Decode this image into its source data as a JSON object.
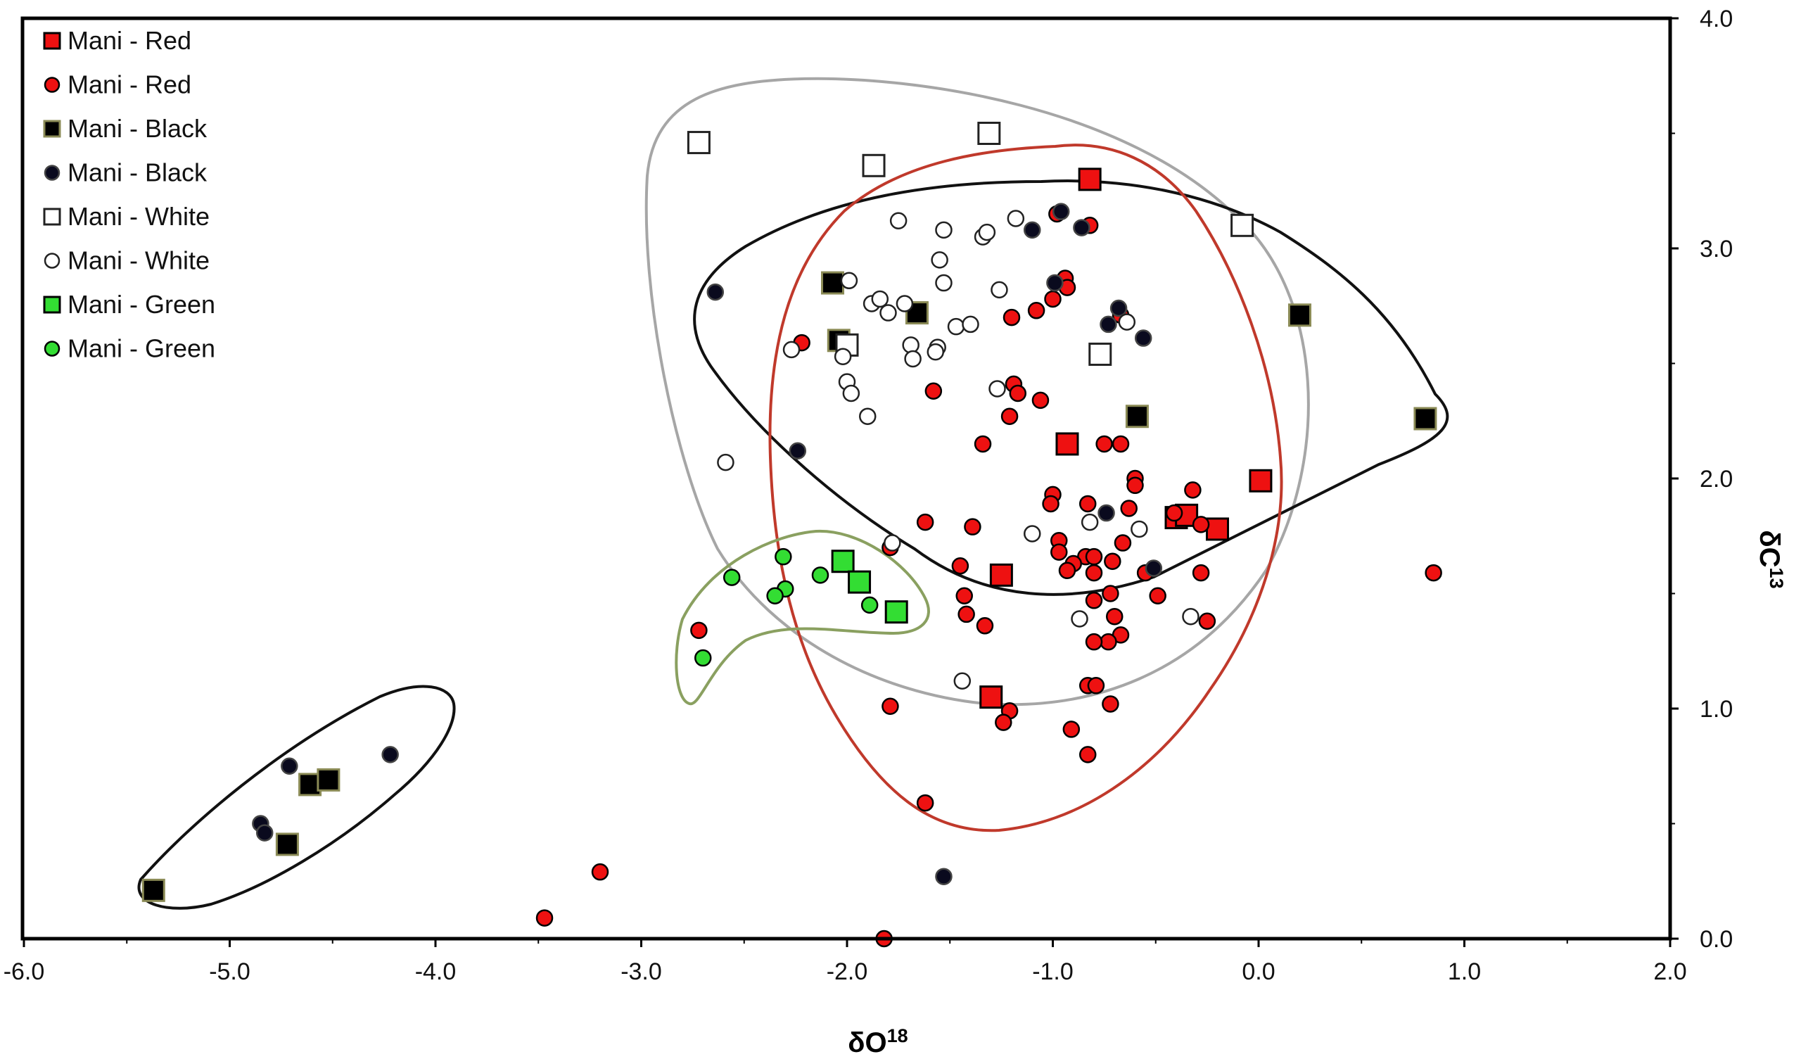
{
  "chart_data": {
    "type": "scatter",
    "title": "",
    "xlabel": "δO",
    "xlabel_sup": "18",
    "ylabel": "δC",
    "ylabel_sup": "13",
    "xlim": [
      -6.0,
      2.0
    ],
    "ylim": [
      0.0,
      4.0
    ],
    "x_ticks": [
      "-6.0",
      "-5.0",
      "-4.0",
      "-3.0",
      "-2.0",
      "-1.0",
      "0.0",
      "1.0",
      "2.0"
    ],
    "y_ticks": [
      "0.0",
      "1.0",
      "2.0",
      "3.0",
      "4.0"
    ],
    "legend_position": "top-left",
    "series": [
      {
        "name": "Mani - Red",
        "marker": "square",
        "fill": "#ee1111",
        "stroke": "#000000",
        "points": [
          [
            -0.82,
            3.3
          ],
          [
            -0.93,
            2.15
          ],
          [
            0.01,
            1.99
          ],
          [
            -0.4,
            1.83
          ],
          [
            -0.35,
            1.84
          ],
          [
            -0.2,
            1.78
          ],
          [
            -1.25,
            1.58
          ],
          [
            -1.3,
            1.05
          ]
        ]
      },
      {
        "name": "Mani - Red",
        "marker": "circle",
        "fill": "#ee1111",
        "stroke": "#000000",
        "points": [
          [
            -0.98,
            3.15
          ],
          [
            -0.82,
            3.1
          ],
          [
            -0.94,
            2.87
          ],
          [
            -0.93,
            2.83
          ],
          [
            -1.08,
            2.73
          ],
          [
            -1.2,
            2.7
          ],
          [
            -1.0,
            2.78
          ],
          [
            -2.22,
            2.59
          ],
          [
            -1.58,
            2.38
          ],
          [
            -1.19,
            2.41
          ],
          [
            -1.17,
            2.37
          ],
          [
            -1.06,
            2.34
          ],
          [
            -1.21,
            2.27
          ],
          [
            -1.34,
            2.15
          ],
          [
            -0.67,
            2.71
          ],
          [
            -0.75,
            2.15
          ],
          [
            -0.67,
            2.15
          ],
          [
            -0.6,
            2.0
          ],
          [
            -0.6,
            1.97
          ],
          [
            -0.32,
            1.95
          ],
          [
            -1.0,
            1.93
          ],
          [
            -1.01,
            1.89
          ],
          [
            -0.83,
            1.89
          ],
          [
            -0.63,
            1.87
          ],
          [
            -0.41,
            1.85
          ],
          [
            -0.28,
            1.8
          ],
          [
            -1.62,
            1.81
          ],
          [
            -1.39,
            1.79
          ],
          [
            -0.97,
            1.73
          ],
          [
            -0.66,
            1.72
          ],
          [
            -0.97,
            1.68
          ],
          [
            -0.84,
            1.66
          ],
          [
            -0.9,
            1.63
          ],
          [
            -0.8,
            1.66
          ],
          [
            -0.71,
            1.64
          ],
          [
            -0.93,
            1.6
          ],
          [
            -0.8,
            1.59
          ],
          [
            -0.55,
            1.59
          ],
          [
            -0.28,
            1.59
          ],
          [
            -1.45,
            1.62
          ],
          [
            -1.79,
            1.7
          ],
          [
            -0.72,
            1.5
          ],
          [
            -0.8,
            1.47
          ],
          [
            -0.49,
            1.49
          ],
          [
            -1.43,
            1.49
          ],
          [
            -1.42,
            1.41
          ],
          [
            -1.33,
            1.36
          ],
          [
            -0.7,
            1.4
          ],
          [
            -0.67,
            1.32
          ],
          [
            -0.73,
            1.29
          ],
          [
            -0.8,
            1.29
          ],
          [
            -0.25,
            1.38
          ],
          [
            0.85,
            1.59
          ],
          [
            -2.72,
            1.34
          ],
          [
            -0.83,
            1.1
          ],
          [
            -0.79,
            1.1
          ],
          [
            -0.72,
            1.02
          ],
          [
            -1.79,
            1.01
          ],
          [
            -1.21,
            0.99
          ],
          [
            -1.24,
            0.94
          ],
          [
            -0.91,
            0.91
          ],
          [
            -0.83,
            0.8
          ],
          [
            -1.62,
            0.59
          ],
          [
            -3.2,
            0.29
          ],
          [
            -3.47,
            0.09
          ],
          [
            -1.82,
            0.0
          ]
        ]
      },
      {
        "name": "Mani - Black",
        "marker": "square",
        "fill": "#000000",
        "stroke": "#8a8a55",
        "points": [
          [
            -2.07,
            2.85
          ],
          [
            -1.66,
            2.72
          ],
          [
            -2.04,
            2.6
          ],
          [
            0.2,
            2.71
          ],
          [
            -0.59,
            2.27
          ],
          [
            0.81,
            2.26
          ],
          [
            -4.61,
            0.67
          ],
          [
            -4.52,
            0.69
          ],
          [
            -4.72,
            0.41
          ],
          [
            -5.37,
            0.21
          ]
        ]
      },
      {
        "name": "Mani - Black",
        "marker": "circle",
        "fill": "#0a0a1e",
        "stroke": "#444444",
        "points": [
          [
            -0.96,
            3.16
          ],
          [
            -0.86,
            3.09
          ],
          [
            -1.1,
            3.08
          ],
          [
            -0.99,
            2.85
          ],
          [
            -0.68,
            2.74
          ],
          [
            -0.73,
            2.67
          ],
          [
            -0.56,
            2.61
          ],
          [
            -2.64,
            2.81
          ],
          [
            -2.24,
            2.12
          ],
          [
            -0.74,
            1.85
          ],
          [
            -0.51,
            1.61
          ],
          [
            -4.22,
            0.8
          ],
          [
            -4.71,
            0.75
          ],
          [
            -4.85,
            0.5
          ],
          [
            -4.83,
            0.46
          ],
          [
            -1.53,
            0.27
          ]
        ]
      },
      {
        "name": "Mani - White",
        "marker": "square",
        "fill": "#ffffff",
        "stroke": "#222222",
        "points": [
          [
            -2.72,
            3.46
          ],
          [
            -1.87,
            3.36
          ],
          [
            -1.31,
            3.5
          ],
          [
            -0.08,
            3.1
          ],
          [
            -2.0,
            2.58
          ],
          [
            -0.77,
            2.54
          ]
        ]
      },
      {
        "name": "Mani - White",
        "marker": "circle",
        "fill": "#ffffff",
        "stroke": "#222222",
        "points": [
          [
            -1.75,
            3.12
          ],
          [
            -1.53,
            3.08
          ],
          [
            -1.34,
            3.05
          ],
          [
            -1.32,
            3.07
          ],
          [
            -1.18,
            3.13
          ],
          [
            -1.55,
            2.95
          ],
          [
            -1.53,
            2.85
          ],
          [
            -1.99,
            2.86
          ],
          [
            -1.88,
            2.76
          ],
          [
            -1.84,
            2.78
          ],
          [
            -1.8,
            2.72
          ],
          [
            -1.72,
            2.76
          ],
          [
            -1.26,
            2.82
          ],
          [
            -1.47,
            2.66
          ],
          [
            -1.4,
            2.67
          ],
          [
            -1.56,
            2.57
          ],
          [
            -1.57,
            2.55
          ],
          [
            -1.69,
            2.58
          ],
          [
            -1.68,
            2.52
          ],
          [
            -2.02,
            2.53
          ],
          [
            -2.27,
            2.56
          ],
          [
            -2.0,
            2.42
          ],
          [
            -1.98,
            2.37
          ],
          [
            -1.9,
            2.27
          ],
          [
            -1.27,
            2.39
          ],
          [
            -0.64,
            2.68
          ],
          [
            -2.59,
            2.07
          ],
          [
            -0.82,
            1.81
          ],
          [
            -0.58,
            1.78
          ],
          [
            -1.1,
            1.76
          ],
          [
            -1.78,
            1.72
          ],
          [
            -0.87,
            1.39
          ],
          [
            -0.33,
            1.4
          ],
          [
            -1.44,
            1.12
          ]
        ]
      },
      {
        "name": "Mani - Green",
        "marker": "square",
        "fill": "#33dd33",
        "stroke": "#000000",
        "points": [
          [
            -2.02,
            1.64
          ],
          [
            -1.94,
            1.55
          ],
          [
            -1.76,
            1.42
          ]
        ]
      },
      {
        "name": "Mani - Green",
        "marker": "circle",
        "fill": "#33dd33",
        "stroke": "#000000",
        "points": [
          [
            -2.31,
            1.66
          ],
          [
            -2.13,
            1.58
          ],
          [
            -2.56,
            1.57
          ],
          [
            -2.3,
            1.52
          ],
          [
            -2.35,
            1.49
          ],
          [
            -1.89,
            1.45
          ],
          [
            -2.7,
            1.22
          ]
        ]
      }
    ],
    "envelopes": [
      {
        "name": "red-envelope",
        "color": "#c0392b"
      },
      {
        "name": "white-envelope",
        "color": "#a6a6a6"
      },
      {
        "name": "black-envelope-main",
        "color": "#111111"
      },
      {
        "name": "black-envelope-lower",
        "color": "#111111"
      },
      {
        "name": "green-envelope",
        "color": "#8aa060"
      }
    ]
  }
}
